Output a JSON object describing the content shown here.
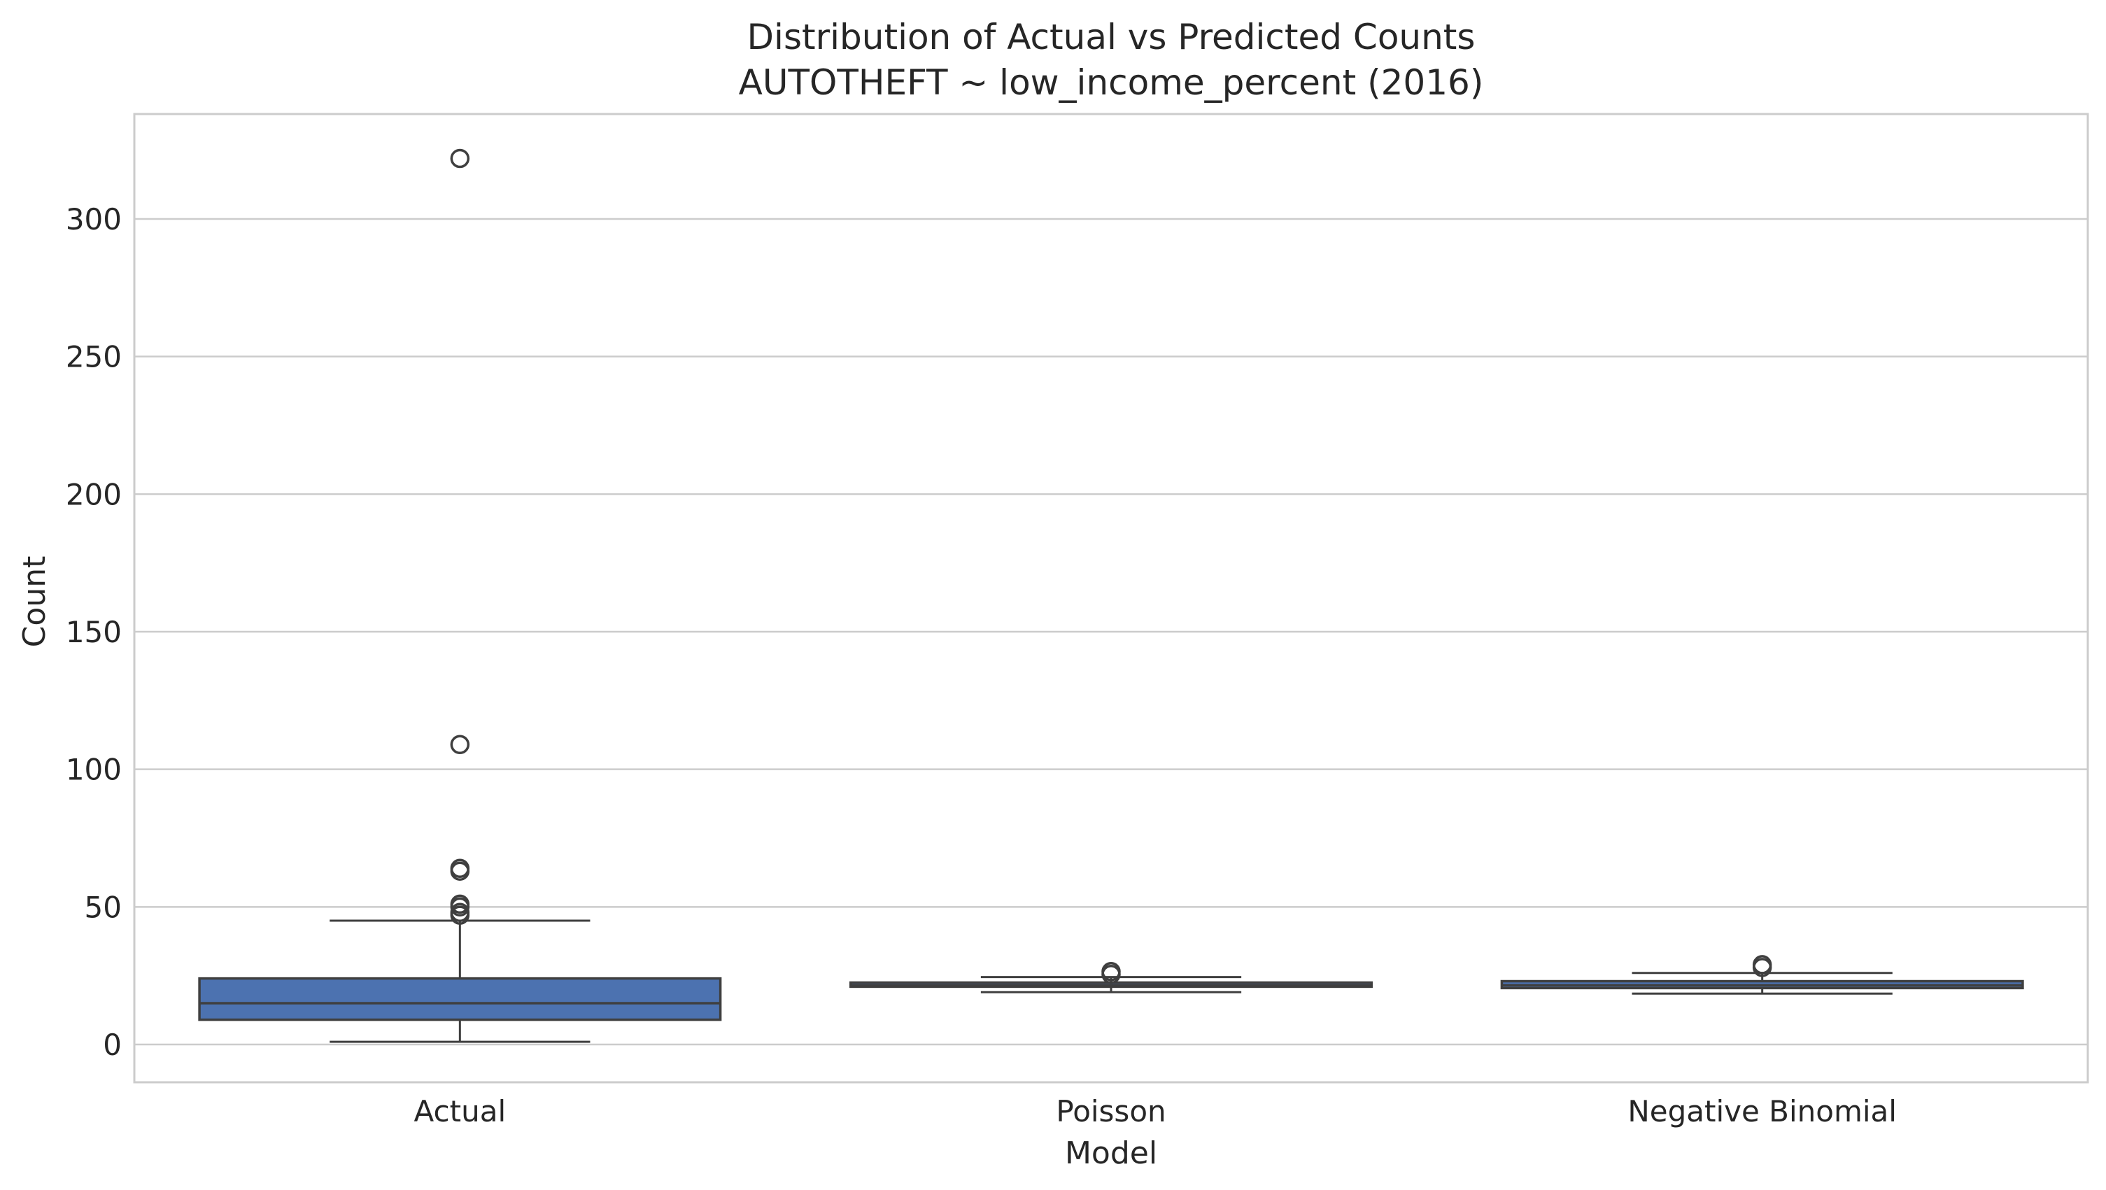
{
  "chart_data": {
    "type": "box",
    "title": "Distribution of Actual vs Predicted Counts",
    "subtitle": "AUTOTHEFT ~ low_income_percent (2016)",
    "xlabel": "Model",
    "ylabel": "Count",
    "ylim": [
      -15,
      338
    ],
    "yticks": [
      0,
      50,
      100,
      150,
      200,
      250,
      300
    ],
    "grid": true,
    "categories": [
      "Actual",
      "Poisson",
      "Negative Binomial"
    ],
    "colors": {
      "box": "#4c72b0",
      "line": "#3f3f3f",
      "grid": "#cccccc",
      "spine": "#cccccc"
    },
    "boxes": [
      {
        "category": "Actual",
        "whisker_low": 1,
        "q1": 9,
        "median": 15,
        "q3": 24,
        "whisker_high": 45,
        "outliers": [
          47,
          48,
          50,
          51,
          63,
          64,
          109,
          322
        ]
      },
      {
        "category": "Poisson",
        "whisker_low": 19,
        "q1": 21,
        "median": 21.5,
        "q3": 22.5,
        "whisker_high": 24.5,
        "outliers": [
          25.5,
          26.5
        ]
      },
      {
        "category": "Negative Binomial",
        "whisker_low": 18.5,
        "q1": 20.5,
        "median": 21.5,
        "q3": 23,
        "whisker_high": 26,
        "outliers": [
          28,
          29
        ]
      }
    ]
  }
}
